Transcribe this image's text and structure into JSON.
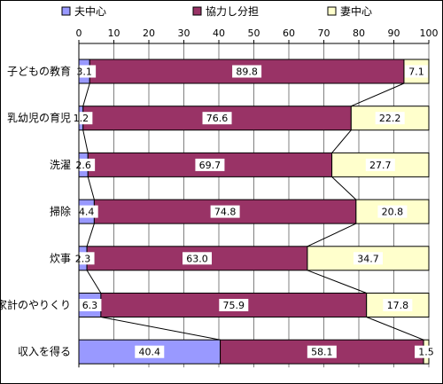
{
  "chart_data": {
    "type": "bar",
    "orientation": "horizontal",
    "stacked": true,
    "percent": true,
    "legend_position": "top",
    "grid": true,
    "xlim": [
      0,
      100
    ],
    "ticks": [
      "0",
      "10",
      "20",
      "30",
      "40",
      "50",
      "60",
      "70",
      "80",
      "90",
      "100"
    ],
    "categories": [
      "子どもの教育",
      "乳幼児の育児",
      "洗濯",
      "掃除",
      "炊事",
      "家計のやりくり",
      "収入を得る"
    ],
    "series": [
      {
        "name": "夫中心",
        "color": "#9999ff",
        "values": [
          3.1,
          1.2,
          2.6,
          4.4,
          2.3,
          6.3,
          40.4
        ]
      },
      {
        "name": "協力し分担",
        "color": "#993366",
        "values": [
          89.8,
          76.6,
          69.7,
          74.8,
          63.0,
          75.9,
          58.1
        ]
      },
      {
        "name": "妻中心",
        "color": "#ffffcc",
        "values": [
          7.1,
          22.2,
          27.7,
          20.8,
          34.7,
          17.8,
          1.5
        ]
      }
    ],
    "value_labels": [
      [
        "3.1",
        "89.8",
        "7.1"
      ],
      [
        "1.2",
        "76.6",
        "22.2"
      ],
      [
        "2.6",
        "69.7",
        "27.7"
      ],
      [
        "4.4",
        "74.8",
        "20.8"
      ],
      [
        "2.3",
        "63.0",
        "34.7"
      ],
      [
        "6.3",
        "75.9",
        "17.8"
      ],
      [
        "40.4",
        "58.1",
        "1.5"
      ]
    ]
  }
}
